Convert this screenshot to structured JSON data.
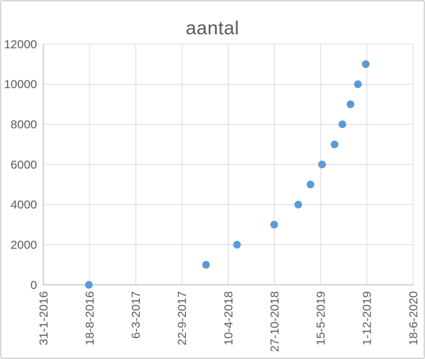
{
  "chart_data": {
    "type": "scatter",
    "title": "aantal",
    "legend": "none",
    "grid": true,
    "series_color": "#5b9bd5",
    "colors": {
      "gridline": "#d9d9d9",
      "axis_line": "#bfbfbf",
      "text": "#595959",
      "frame_border": "#d7d7d7",
      "background": "#ffffff"
    },
    "x_axis": {
      "start_date": "31-1-2016",
      "tick_interval_days": 200,
      "range_days": [
        0,
        1600
      ],
      "tick_labels": [
        "31-1-2016",
        "18-8-2016",
        "6-3-2017",
        "22-9-2017",
        "10-4-2018",
        "27-10-2018",
        "15-5-2019",
        "1-12-2019",
        "18-6-2020"
      ]
    },
    "y_axis": {
      "range": [
        0,
        12000
      ],
      "tick_interval": 2000,
      "tick_labels": [
        "0",
        "2000",
        "4000",
        "6000",
        "8000",
        "10000",
        "12000"
      ]
    },
    "points": [
      {
        "date": "15-8-2016",
        "days": 197,
        "value": 0
      },
      {
        "date": "4-1-2018",
        "days": 704,
        "value": 1000
      },
      {
        "date": "18-5-2018",
        "days": 838,
        "value": 2000
      },
      {
        "date": "26-10-2018",
        "days": 999,
        "value": 3000
      },
      {
        "date": "7-2-2019",
        "days": 1103,
        "value": 4000
      },
      {
        "date": "1-4-2019",
        "days": 1156,
        "value": 5000
      },
      {
        "date": "21-5-2019",
        "days": 1206,
        "value": 6000
      },
      {
        "date": "14-7-2019",
        "days": 1260,
        "value": 7000
      },
      {
        "date": "17-8-2019",
        "days": 1294,
        "value": 8000
      },
      {
        "date": "21-9-2019",
        "days": 1329,
        "value": 9000
      },
      {
        "date": "23-10-2019",
        "days": 1361,
        "value": 10000
      },
      {
        "date": "26-11-2019",
        "days": 1395,
        "value": 11000
      }
    ]
  }
}
